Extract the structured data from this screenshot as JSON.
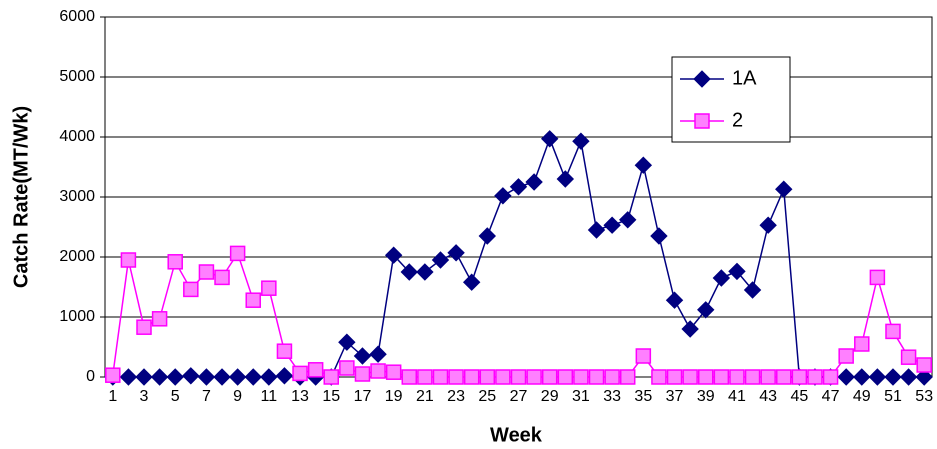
{
  "chart_data": {
    "type": "line",
    "x_label": "Week",
    "y_label": "Catch Rate(MT/Wk)",
    "categories": [
      "1",
      null,
      "3",
      null,
      "5",
      null,
      "7",
      null,
      "9",
      null,
      "11",
      null,
      "13",
      null,
      "15",
      null,
      "17",
      null,
      "19",
      null,
      "21",
      null,
      "23",
      null,
      "25",
      null,
      "27",
      null,
      "29",
      null,
      "31",
      null,
      "33",
      null,
      "35",
      null,
      "37",
      null,
      "39",
      null,
      "41",
      null,
      "43",
      null,
      "45",
      null,
      "47",
      null,
      "49",
      null,
      "51",
      null,
      "53"
    ],
    "series": [
      {
        "name": "1A",
        "color": "#000080",
        "marker": "diamond",
        "values": [
          0,
          0,
          0,
          0,
          0,
          20,
          0,
          0,
          0,
          0,
          0,
          20,
          0,
          0,
          0,
          580,
          350,
          380,
          2030,
          1750,
          1750,
          1950,
          2070,
          1580,
          2350,
          3020,
          3170,
          3250,
          3970,
          3300,
          3930,
          2450,
          2530,
          2620,
          3530,
          2350,
          1280,
          800,
          1120,
          1650,
          1760,
          1450,
          2530,
          3130,
          0,
          0,
          0,
          0,
          0,
          0,
          0,
          0,
          0
        ]
      },
      {
        "name": "2",
        "color": "#ff00ff",
        "marker": "square",
        "values": [
          30,
          1950,
          830,
          970,
          1920,
          1460,
          1750,
          1660,
          2060,
          1280,
          1480,
          430,
          60,
          120,
          0,
          150,
          50,
          100,
          80,
          0,
          0,
          0,
          0,
          0,
          0,
          0,
          0,
          0,
          0,
          0,
          0,
          0,
          0,
          0,
          350,
          0,
          0,
          0,
          0,
          0,
          0,
          0,
          0,
          0,
          0,
          0,
          0,
          350,
          550,
          1660,
          760,
          330,
          200
        ]
      }
    ],
    "ylim": [
      0,
      6000
    ],
    "yticks": [
      0,
      1000,
      2000,
      3000,
      4000,
      5000,
      6000
    ],
    "grid": true,
    "legend": "upper right"
  }
}
